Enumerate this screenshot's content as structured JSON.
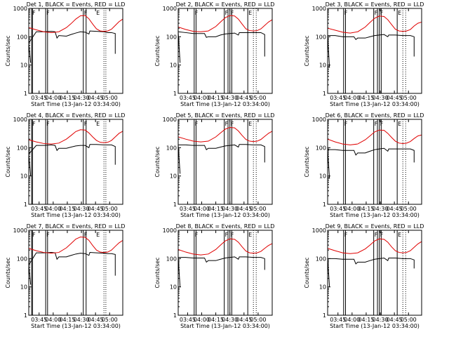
{
  "chart_data": {
    "type": "line",
    "shared": {
      "ylabel": "Counts/sec",
      "xlabel": "Start Time (13-Jan-12 03:34:00)",
      "x_range_min": [
        0,
        100
      ],
      "y_range": [
        1,
        1000
      ],
      "y_scale": "log",
      "y_ticks": [
        1,
        10,
        100,
        1000
      ],
      "y_tick_labels": [
        "1",
        "10",
        "100",
        "1000"
      ],
      "x_ticks_min": [
        11,
        26,
        41,
        56,
        71,
        86
      ],
      "x_tick_labels": [
        "03:45",
        "04:00",
        "04:15",
        "04:30",
        "04:45",
        "05:00"
      ],
      "marker_letters": [
        "F",
        "F",
        "F",
        "E"
      ],
      "colors": {
        "events": "#000000",
        "lld": "#e00000"
      }
    },
    "panels": [
      {
        "title": "Det 1, BLACK = Events, RED = LLD",
        "x_ticks_min": [
          11,
          26,
          41,
          56,
          71,
          86
        ],
        "x_tick_labels": [
          "03:45",
          "04:00",
          "04:15",
          "04:30",
          "04:45",
          "05:00"
        ],
        "solid_markers_min": [
          3,
          4,
          18,
          20,
          58,
          61
        ],
        "dotted_markers_min": [
          80,
          82
        ],
        "letter_markers_min": [
          3,
          18,
          58,
          71
        ],
        "lld_x": [
          0,
          8,
          16,
          24,
          32,
          40,
          45,
          50,
          55,
          60,
          64,
          68,
          72,
          76,
          80,
          84,
          88,
          92,
          96,
          100
        ],
        "lld_y": [
          210,
          175,
          150,
          140,
          150,
          210,
          290,
          420,
          550,
          560,
          430,
          280,
          190,
          160,
          155,
          160,
          185,
          250,
          340,
          420
        ],
        "evt_x": [
          0,
          8,
          16,
          24,
          28,
          30,
          32,
          40,
          45,
          50,
          55,
          60,
          64,
          65,
          72,
          80,
          84,
          88,
          92
        ],
        "evt_y": [
          60,
          150,
          150,
          155,
          150,
          90,
          110,
          105,
          120,
          135,
          150,
          145,
          125,
          160,
          155,
          150,
          140,
          140,
          130
        ],
        "evt_ends": [
          [
            2,
            12
          ],
          [
            92,
            25
          ]
        ]
      },
      {
        "title": "Det 2, BLACK = Events, RED = LLD",
        "x_ticks_min": [
          10,
          25,
          40,
          55,
          70,
          85
        ],
        "x_tick_labels": [
          "03:45",
          "04:00",
          "04:15",
          "04:30",
          "04:45",
          "05:00"
        ],
        "solid_markers_min": [
          17,
          19,
          49,
          53,
          55,
          57,
          74
        ],
        "dotted_markers_min": [
          80,
          83
        ],
        "letter_markers_min": [
          17,
          49,
          55,
          74
        ],
        "lld_x": [
          0,
          8,
          16,
          24,
          32,
          40,
          45,
          50,
          55,
          60,
          64,
          68,
          72,
          76,
          80,
          84,
          88,
          92,
          96,
          100
        ],
        "lld_y": [
          220,
          180,
          155,
          150,
          160,
          230,
          330,
          470,
          560,
          540,
          420,
          280,
          190,
          165,
          160,
          165,
          190,
          250,
          330,
          400
        ],
        "evt_x": [
          0,
          8,
          16,
          24,
          28,
          30,
          32,
          40,
          45,
          50,
          55,
          60,
          64,
          65,
          72,
          80,
          84,
          88,
          92
        ],
        "evt_y": [
          150,
          140,
          130,
          130,
          130,
          95,
          100,
          100,
          115,
          125,
          130,
          135,
          115,
          140,
          140,
          140,
          140,
          140,
          120
        ],
        "evt_ends": [
          [
            2,
            12
          ],
          [
            92,
            20
          ]
        ]
      },
      {
        "title": "Det 3, BLACK = Events, RED = LLD",
        "x_ticks_min": [
          11,
          26,
          41,
          56,
          71,
          86
        ],
        "x_tick_labels": [
          "03:45",
          "04:00",
          "04:15",
          "04:30",
          "04:45",
          "05:00"
        ],
        "solid_markers_min": [
          17,
          19,
          49,
          53,
          55,
          57,
          74
        ],
        "dotted_markers_min": [
          80,
          83
        ],
        "letter_markers_min": [
          17,
          49,
          55,
          74
        ],
        "lld_x": [
          0,
          8,
          16,
          24,
          32,
          40,
          45,
          50,
          55,
          60,
          64,
          68,
          72,
          76,
          80,
          84,
          88,
          92,
          96,
          100
        ],
        "lld_y": [
          200,
          170,
          145,
          135,
          150,
          220,
          320,
          450,
          540,
          520,
          400,
          270,
          185,
          160,
          155,
          160,
          180,
          240,
          300,
          330
        ],
        "evt_x": [
          0,
          8,
          16,
          24,
          28,
          30,
          32,
          40,
          45,
          50,
          55,
          60,
          64,
          65,
          72,
          80,
          84,
          88,
          92
        ],
        "evt_y": [
          110,
          110,
          100,
          100,
          100,
          80,
          90,
          90,
          100,
          110,
          115,
          120,
          100,
          115,
          115,
          110,
          110,
          110,
          100
        ],
        "evt_ends": [
          [
            2,
            8
          ],
          [
            92,
            20
          ]
        ]
      },
      {
        "title": "Det 4, BLACK = Events, RED = LLD",
        "x_ticks_min": [
          11,
          26,
          41,
          56,
          71,
          86
        ],
        "x_tick_labels": [
          "03:45",
          "04:00",
          "04:15",
          "04:30",
          "04:45",
          "05:00"
        ],
        "solid_markers_min": [
          3,
          4,
          18,
          20,
          58,
          61
        ],
        "dotted_markers_min": [
          80,
          82
        ],
        "letter_markers_min": [
          3,
          18,
          58,
          71
        ],
        "lld_x": [
          0,
          8,
          16,
          24,
          32,
          40,
          45,
          50,
          55,
          60,
          64,
          68,
          72,
          76,
          80,
          84,
          88,
          92,
          96,
          100
        ],
        "lld_y": [
          190,
          160,
          140,
          135,
          145,
          200,
          270,
          370,
          430,
          420,
          330,
          240,
          180,
          155,
          150,
          155,
          180,
          240,
          320,
          380
        ],
        "evt_x": [
          0,
          8,
          16,
          24,
          28,
          30,
          32,
          40,
          45,
          50,
          55,
          60,
          64,
          65,
          72,
          80,
          84,
          88,
          92
        ],
        "evt_y": [
          60,
          120,
          120,
          125,
          120,
          80,
          95,
          95,
          105,
          115,
          120,
          120,
          100,
          130,
          130,
          125,
          125,
          125,
          110
        ],
        "evt_ends": [
          [
            2,
            10
          ],
          [
            92,
            25
          ]
        ]
      },
      {
        "title": "Det 5, BLACK = Events, RED = LLD",
        "x_ticks_min": [
          10,
          25,
          40,
          55,
          70,
          85
        ],
        "x_tick_labels": [
          "03:45",
          "04:00",
          "04:15",
          "04:30",
          "04:45",
          "05:00"
        ],
        "solid_markers_min": [
          17,
          19,
          49,
          53,
          55,
          57,
          74
        ],
        "dotted_markers_min": [
          80,
          83
        ],
        "letter_markers_min": [
          17,
          49,
          55,
          74
        ],
        "lld_x": [
          0,
          8,
          16,
          24,
          32,
          40,
          45,
          50,
          55,
          60,
          64,
          68,
          72,
          76,
          80,
          84,
          88,
          92,
          96,
          100
        ],
        "lld_y": [
          240,
          200,
          170,
          160,
          170,
          240,
          330,
          450,
          520,
          500,
          390,
          270,
          195,
          170,
          165,
          170,
          195,
          250,
          320,
          380
        ],
        "evt_x": [
          0,
          8,
          16,
          24,
          28,
          30,
          32,
          40,
          45,
          50,
          55,
          60,
          64,
          65,
          72,
          80,
          84,
          88,
          92
        ],
        "evt_y": [
          125,
          125,
          120,
          120,
          120,
          85,
          95,
          95,
          105,
          115,
          120,
          125,
          105,
          130,
          130,
          125,
          125,
          125,
          110
        ],
        "evt_ends": [
          [
            2,
            12
          ],
          [
            92,
            30
          ]
        ]
      },
      {
        "title": "Det 6, BLACK = Events, RED = LLD",
        "x_ticks_min": [
          11,
          26,
          41,
          56,
          71,
          86
        ],
        "x_tick_labels": [
          "03:45",
          "04:00",
          "04:15",
          "04:30",
          "04:45",
          "05:00"
        ],
        "solid_markers_min": [
          17,
          19,
          49,
          53,
          55,
          57,
          74
        ],
        "dotted_markers_min": [
          80,
          83
        ],
        "letter_markers_min": [
          17,
          49,
          55,
          74
        ],
        "lld_x": [
          0,
          8,
          16,
          24,
          32,
          40,
          45,
          50,
          55,
          60,
          64,
          68,
          72,
          76,
          80,
          84,
          88,
          92,
          96,
          100
        ],
        "lld_y": [
          200,
          160,
          135,
          125,
          135,
          190,
          260,
          360,
          420,
          410,
          320,
          230,
          170,
          145,
          140,
          145,
          165,
          210,
          260,
          280
        ],
        "evt_x": [
          0,
          8,
          16,
          24,
          28,
          30,
          32,
          40,
          45,
          50,
          55,
          60,
          64,
          65,
          72,
          80,
          84,
          88,
          92
        ],
        "evt_y": [
          85,
          85,
          80,
          80,
          80,
          55,
          65,
          65,
          75,
          85,
          90,
          95,
          75,
          90,
          90,
          90,
          90,
          90,
          80
        ],
        "evt_ends": [
          [
            2,
            8
          ],
          [
            92,
            30
          ]
        ]
      },
      {
        "title": "Det 7, BLACK = Events, RED = LLD",
        "x_ticks_min": [
          11,
          26,
          41,
          56,
          71,
          86
        ],
        "x_tick_labels": [
          "03:45",
          "04:00",
          "04:15",
          "04:30",
          "04:45",
          "05:00"
        ],
        "solid_markers_min": [
          3,
          4,
          18,
          20,
          58,
          61
        ],
        "dotted_markers_min": [
          80,
          82
        ],
        "letter_markers_min": [
          3,
          18,
          58,
          71
        ],
        "lld_x": [
          0,
          8,
          16,
          24,
          32,
          40,
          45,
          50,
          55,
          60,
          64,
          68,
          72,
          76,
          80,
          84,
          88,
          92,
          96,
          100
        ],
        "lld_y": [
          230,
          190,
          165,
          155,
          165,
          240,
          340,
          490,
          580,
          560,
          440,
          290,
          200,
          170,
          165,
          170,
          200,
          270,
          360,
          440
        ],
        "evt_x": [
          0,
          8,
          16,
          24,
          28,
          30,
          32,
          40,
          45,
          50,
          55,
          60,
          64,
          65,
          72,
          80,
          84,
          88,
          92
        ],
        "evt_y": [
          60,
          160,
          160,
          165,
          160,
          95,
          115,
          115,
          130,
          145,
          155,
          150,
          130,
          165,
          160,
          155,
          150,
          150,
          140
        ],
        "evt_ends": [
          [
            2,
            12
          ],
          [
            92,
            25
          ]
        ]
      },
      {
        "title": "Det 8, BLACK = Events, RED = LLD",
        "x_ticks_min": [
          10,
          25,
          40,
          55,
          70,
          85
        ],
        "x_tick_labels": [
          "03:45",
          "04:00",
          "04:15",
          "04:30",
          "04:45",
          "05:00"
        ],
        "solid_markers_min": [
          17,
          19,
          49,
          53,
          55,
          57,
          74
        ],
        "dotted_markers_min": [
          80,
          83
        ],
        "letter_markers_min": [
          17,
          49,
          55,
          74
        ],
        "lld_x": [
          0,
          8,
          16,
          24,
          32,
          40,
          45,
          50,
          55,
          60,
          64,
          68,
          72,
          76,
          80,
          84,
          88,
          92,
          96,
          100
        ],
        "lld_y": [
          210,
          170,
          145,
          135,
          145,
          210,
          300,
          420,
          500,
          480,
          380,
          260,
          185,
          160,
          155,
          160,
          180,
          230,
          290,
          340
        ],
        "evt_x": [
          0,
          8,
          16,
          24,
          28,
          30,
          32,
          40,
          45,
          50,
          55,
          60,
          64,
          65,
          72,
          80,
          84,
          88,
          92
        ],
        "evt_y": [
          110,
          110,
          105,
          105,
          105,
          75,
          85,
          85,
          95,
          105,
          110,
          115,
          95,
          115,
          115,
          110,
          110,
          110,
          100
        ],
        "evt_ends": [
          [
            2,
            10
          ],
          [
            92,
            40
          ]
        ]
      },
      {
        "title": "Det 9, BLACK = Events, RED = LLD",
        "x_ticks_min": [
          11,
          26,
          41,
          56,
          71,
          86
        ],
        "x_tick_labels": [
          "03:45",
          "04:00",
          "04:15",
          "04:30",
          "04:45",
          "05:00"
        ],
        "solid_markers_min": [
          17,
          19,
          49,
          53,
          55,
          57,
          74
        ],
        "dotted_markers_min": [
          80,
          83
        ],
        "letter_markers_min": [
          17,
          49,
          55,
          74
        ],
        "lld_x": [
          0,
          8,
          16,
          24,
          32,
          40,
          45,
          50,
          55,
          60,
          64,
          68,
          72,
          76,
          80,
          84,
          88,
          92,
          96,
          100
        ],
        "lld_y": [
          230,
          190,
          160,
          150,
          160,
          220,
          300,
          420,
          500,
          480,
          380,
          260,
          190,
          165,
          160,
          165,
          190,
          250,
          330,
          400
        ],
        "evt_x": [
          0,
          8,
          16,
          24,
          28,
          30,
          32,
          40,
          45,
          50,
          55,
          60,
          64,
          65,
          72,
          80,
          84,
          88,
          92
        ],
        "evt_y": [
          100,
          100,
          95,
          95,
          95,
          65,
          75,
          75,
          85,
          95,
          100,
          105,
          85,
          105,
          105,
          100,
          100,
          100,
          90
        ],
        "evt_ends": [
          [
            2,
            10
          ],
          [
            92,
            45
          ]
        ]
      }
    ]
  }
}
